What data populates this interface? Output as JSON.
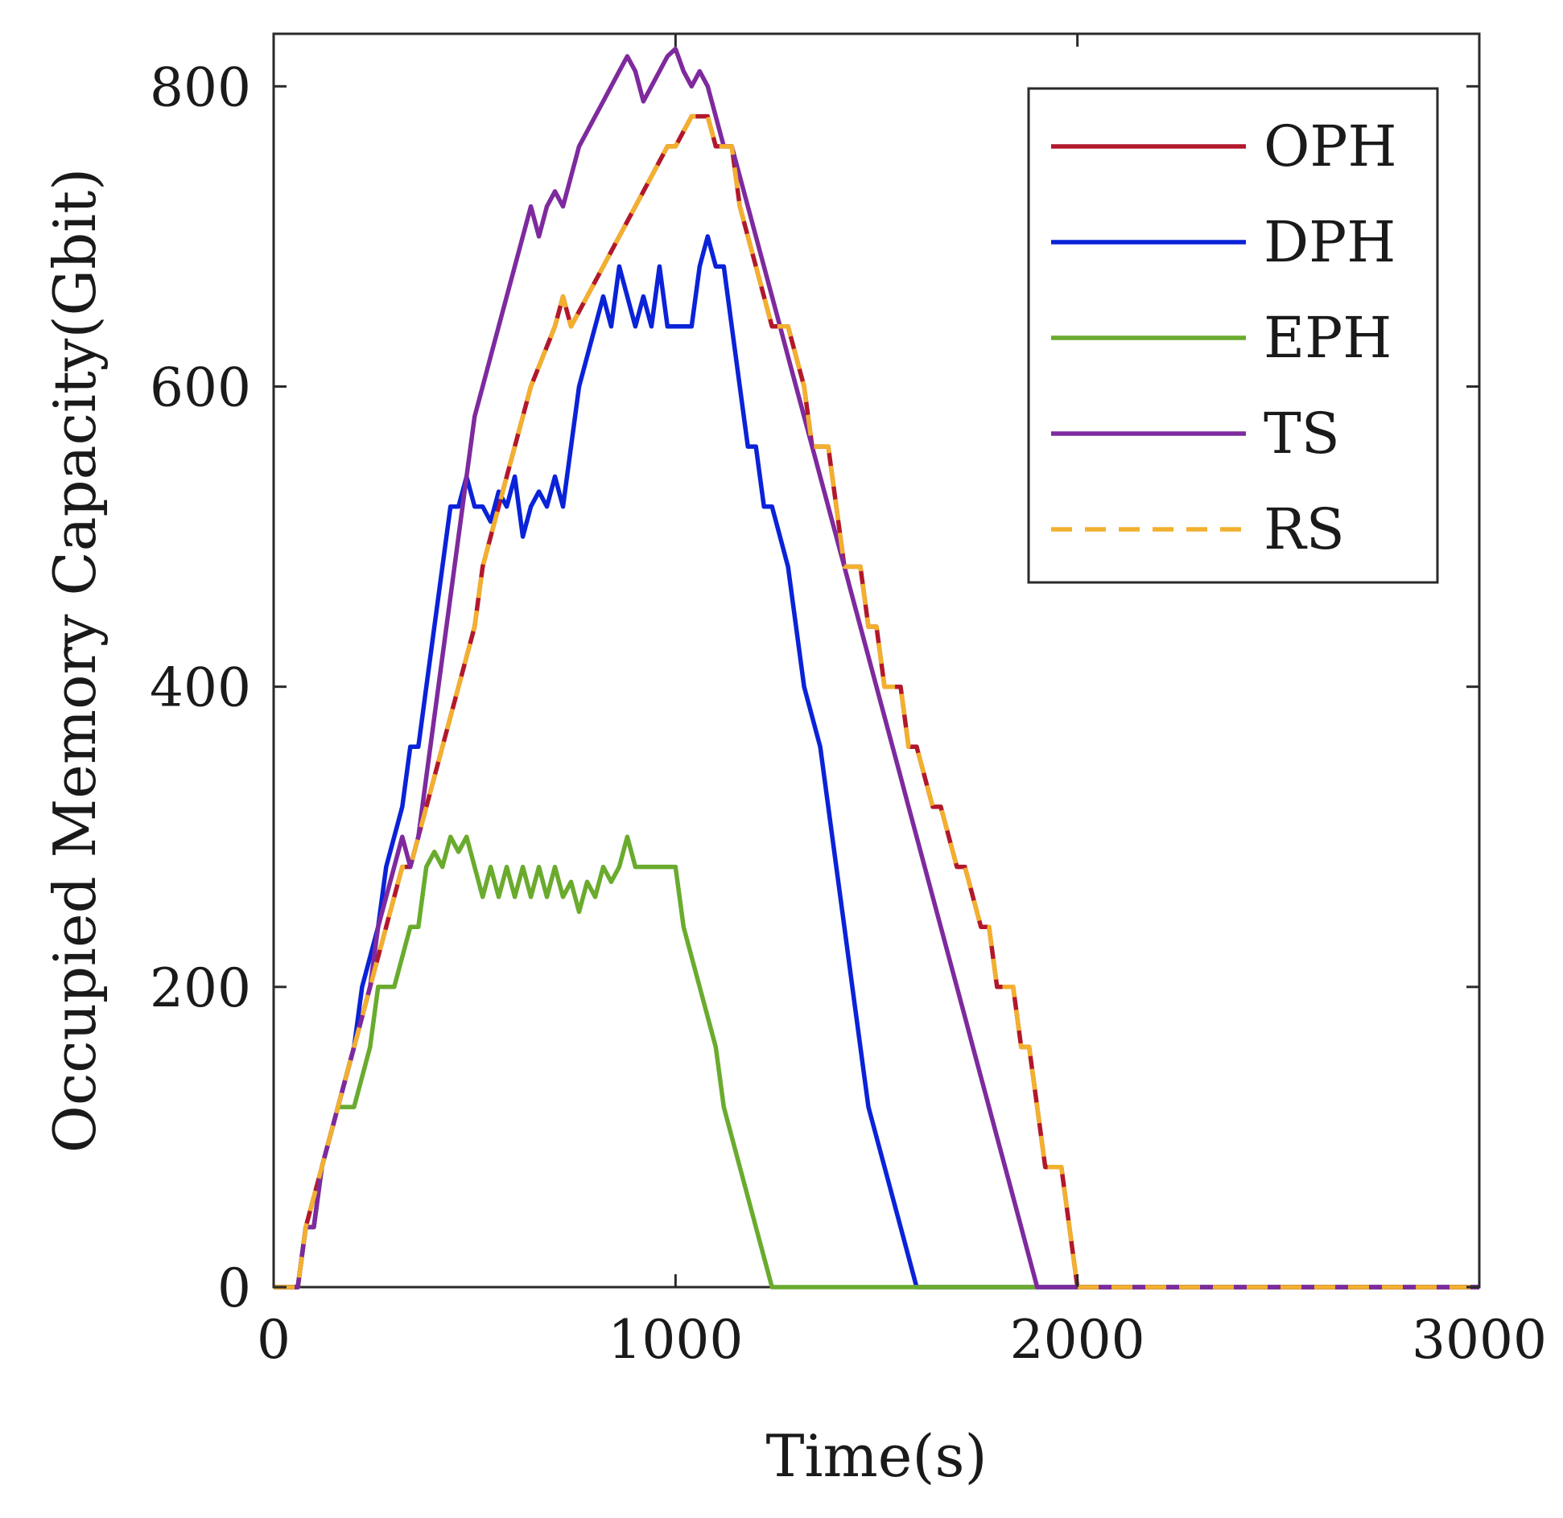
{
  "chart_data": {
    "type": "line",
    "title": "",
    "xlabel": "Time(s)",
    "ylabel": "Occupied Memory Capacity(Gbit)",
    "xlim": [
      0,
      3000
    ],
    "ylim": [
      0,
      835
    ],
    "xticks": [
      0,
      1000,
      2000,
      3000
    ],
    "yticks": [
      0,
      200,
      400,
      600,
      800
    ],
    "grid": false,
    "legend_position": "top-right",
    "series": [
      {
        "name": "OPH",
        "color": "#b2182b",
        "dash": "solid",
        "x": [
          0,
          60,
          80,
          120,
          160,
          200,
          240,
          280,
          320,
          340,
          380,
          420,
          460,
          500,
          520,
          560,
          600,
          640,
          700,
          720,
          740,
          780,
          820,
          860,
          900,
          940,
          980,
          1000,
          1040,
          1080,
          1100,
          1140,
          1160,
          1200,
          1240,
          1280,
          1320,
          1340,
          1380,
          1400,
          1420,
          1460,
          1480,
          1500,
          1520,
          1560,
          1580,
          1600,
          1640,
          1660,
          1700,
          1720,
          1760,
          1780,
          1800,
          1840,
          1860,
          1880,
          1900,
          1920,
          1960,
          1980,
          2000,
          3000
        ],
        "y": [
          0,
          0,
          40,
          80,
          120,
          160,
          200,
          240,
          280,
          280,
          320,
          360,
          400,
          440,
          480,
          520,
          560,
          600,
          640,
          660,
          640,
          660,
          680,
          700,
          720,
          740,
          760,
          760,
          780,
          780,
          760,
          760,
          720,
          680,
          640,
          640,
          600,
          560,
          560,
          520,
          480,
          480,
          440,
          440,
          400,
          400,
          360,
          360,
          320,
          320,
          280,
          280,
          240,
          240,
          200,
          200,
          160,
          160,
          120,
          80,
          80,
          40,
          0,
          0
        ]
      },
      {
        "name": "DPH",
        "color": "#0a22d8",
        "dash": "solid",
        "x": [
          0,
          60,
          80,
          100,
          120,
          160,
          200,
          220,
          260,
          280,
          320,
          340,
          360,
          380,
          400,
          420,
          440,
          460,
          480,
          500,
          520,
          540,
          560,
          580,
          600,
          620,
          640,
          660,
          680,
          700,
          720,
          740,
          760,
          780,
          800,
          820,
          840,
          860,
          880,
          900,
          920,
          940,
          960,
          980,
          1000,
          1020,
          1040,
          1060,
          1080,
          1100,
          1120,
          1140,
          1160,
          1180,
          1200,
          1220,
          1240,
          1280,
          1300,
          1320,
          1360,
          1380,
          1400,
          1420,
          1440,
          1460,
          1480,
          1520,
          1560,
          1600,
          1640,
          1660,
          1680,
          1700,
          1720,
          1740,
          1760,
          1780,
          1800,
          1820,
          1840,
          1860,
          1880,
          3000
        ],
        "y": [
          0,
          0,
          40,
          40,
          80,
          120,
          160,
          200,
          240,
          280,
          320,
          360,
          360,
          400,
          440,
          480,
          520,
          520,
          540,
          520,
          520,
          510,
          530,
          520,
          540,
          500,
          520,
          530,
          520,
          540,
          520,
          560,
          600,
          620,
          640,
          660,
          640,
          680,
          660,
          640,
          660,
          640,
          680,
          640,
          640,
          640,
          640,
          680,
          700,
          680,
          680,
          640,
          600,
          560,
          560,
          520,
          520,
          480,
          440,
          400,
          360,
          320,
          280,
          240,
          200,
          160,
          120,
          80,
          40,
          0,
          0,
          0,
          0,
          0,
          0,
          0,
          0,
          0,
          0,
          0,
          0,
          0,
          0,
          0
        ]
      },
      {
        "name": "EPH",
        "color": "#6aab2e",
        "dash": "solid",
        "x": [
          0,
          60,
          80,
          100,
          120,
          160,
          200,
          240,
          260,
          280,
          300,
          340,
          360,
          380,
          400,
          420,
          440,
          460,
          480,
          500,
          520,
          540,
          560,
          580,
          600,
          620,
          640,
          660,
          680,
          700,
          720,
          740,
          760,
          780,
          800,
          820,
          840,
          860,
          880,
          900,
          920,
          940,
          960,
          980,
          1000,
          1020,
          1060,
          1100,
          1120,
          1160,
          1200,
          1240,
          1280,
          1320,
          1360,
          1400,
          3000
        ],
        "y": [
          0,
          0,
          40,
          40,
          80,
          120,
          120,
          160,
          200,
          200,
          200,
          240,
          240,
          280,
          290,
          280,
          300,
          290,
          300,
          280,
          260,
          280,
          260,
          280,
          260,
          280,
          260,
          280,
          260,
          280,
          260,
          270,
          250,
          270,
          260,
          280,
          270,
          280,
          300,
          280,
          280,
          280,
          280,
          280,
          280,
          240,
          200,
          160,
          120,
          80,
          40,
          0,
          0,
          0,
          0,
          0,
          0
        ]
      },
      {
        "name": "TS",
        "color": "#7e2a9e",
        "dash": "solid",
        "x": [
          0,
          60,
          80,
          100,
          120,
          160,
          200,
          240,
          260,
          280,
          300,
          320,
          340,
          360,
          380,
          400,
          420,
          440,
          460,
          480,
          500,
          520,
          540,
          560,
          580,
          600,
          620,
          640,
          660,
          680,
          700,
          720,
          740,
          760,
          780,
          800,
          820,
          840,
          860,
          880,
          900,
          920,
          940,
          960,
          980,
          1000,
          1020,
          1040,
          1060,
          1080,
          1100,
          1120,
          1140,
          1160,
          1180,
          1200,
          1220,
          1240,
          1260,
          1280,
          1300,
          1320,
          1340,
          1360,
          1380,
          1400,
          1420,
          1440,
          1460,
          1480,
          1500,
          1520,
          1540,
          1560,
          1580,
          1600,
          1620,
          1640,
          1660,
          1680,
          1700,
          1720,
          1740,
          1760,
          1780,
          1800,
          1820,
          1840,
          1860,
          1880,
          1900,
          1920,
          1940,
          1960,
          1980,
          2000,
          3000
        ],
        "y": [
          0,
          0,
          40,
          40,
          80,
          120,
          160,
          200,
          240,
          260,
          280,
          300,
          280,
          300,
          340,
          380,
          420,
          460,
          500,
          540,
          580,
          600,
          620,
          640,
          660,
          680,
          700,
          720,
          700,
          720,
          730,
          720,
          740,
          760,
          770,
          780,
          790,
          800,
          810,
          820,
          810,
          790,
          800,
          810,
          820,
          825,
          810,
          800,
          810,
          800,
          780,
          760,
          760,
          740,
          720,
          700,
          680,
          660,
          640,
          620,
          600,
          580,
          560,
          540,
          520,
          500,
          480,
          460,
          440,
          420,
          400,
          380,
          360,
          340,
          320,
          300,
          280,
          260,
          240,
          220,
          200,
          180,
          160,
          140,
          120,
          100,
          80,
          60,
          40,
          20,
          0,
          0,
          0,
          0,
          0,
          0,
          0
        ]
      },
      {
        "name": "RS",
        "color": "#f2b02e",
        "dash": "dashed",
        "x": [
          0,
          60,
          80,
          120,
          160,
          200,
          240,
          280,
          320,
          340,
          380,
          420,
          460,
          500,
          520,
          560,
          600,
          640,
          700,
          720,
          740,
          780,
          820,
          860,
          900,
          940,
          980,
          1000,
          1040,
          1080,
          1100,
          1140,
          1160,
          1200,
          1240,
          1280,
          1320,
          1340,
          1380,
          1400,
          1420,
          1460,
          1480,
          1500,
          1520,
          1560,
          1580,
          1600,
          1640,
          1660,
          1700,
          1720,
          1760,
          1780,
          1800,
          1840,
          1860,
          1880,
          1900,
          1920,
          1960,
          1980,
          2000,
          3000
        ],
        "y": [
          0,
          0,
          40,
          80,
          120,
          160,
          200,
          240,
          280,
          280,
          320,
          360,
          400,
          440,
          480,
          520,
          560,
          600,
          640,
          660,
          640,
          660,
          680,
          700,
          720,
          740,
          760,
          760,
          780,
          780,
          760,
          760,
          720,
          680,
          640,
          640,
          600,
          560,
          560,
          520,
          480,
          480,
          440,
          440,
          400,
          400,
          360,
          360,
          320,
          320,
          280,
          280,
          240,
          240,
          200,
          200,
          160,
          160,
          120,
          80,
          80,
          40,
          0,
          0
        ]
      }
    ]
  }
}
